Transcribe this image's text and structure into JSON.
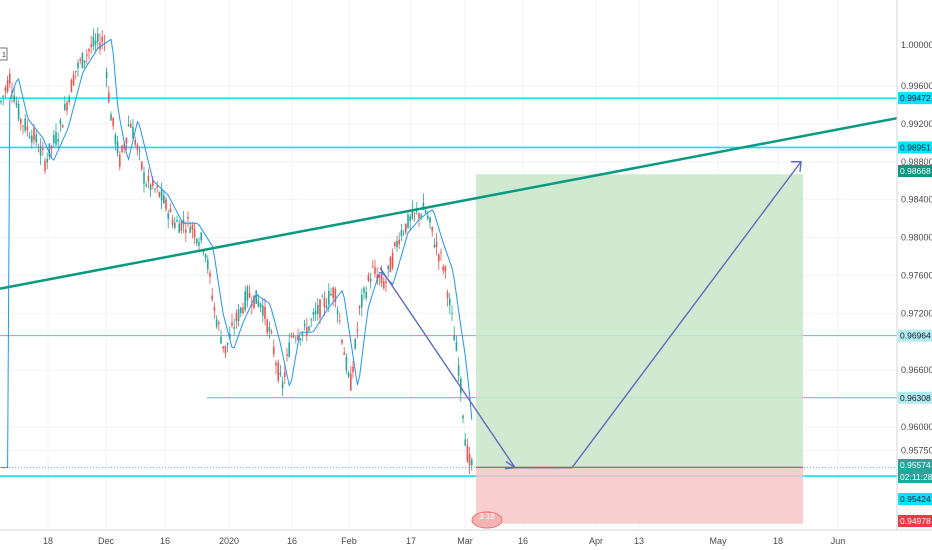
{
  "chart_data": {
    "type": "candlestick",
    "price_axis": {
      "ticks": [
        0.996,
        0.992,
        0.988,
        0.984,
        0.98,
        0.976,
        0.972,
        0.966,
        0.96,
        0.9575
      ],
      "tick_labels": [
        "0.99600",
        "0.99200",
        "0.98800",
        "0.98400",
        "0.98000",
        "0.97600",
        "0.97200",
        "0.96600",
        "0.96000",
        "0.95750"
      ],
      "top_label": "1.00000"
    },
    "time_axis": {
      "labels": [
        "18",
        "Dec",
        "16",
        "2020",
        "16",
        "Feb",
        "17",
        "Mar",
        "16",
        "Apr",
        "13",
        "May",
        "18",
        "Jun"
      ]
    },
    "horizontal_levels": [
      {
        "value": 0.99472,
        "label": "0.99472",
        "color": "#00e5ff",
        "weight": "thick"
      },
      {
        "value": 0.98951,
        "label": "0.98951",
        "color": "#00e5ff",
        "weight": "thick"
      },
      {
        "value": 0.96964,
        "label": "0.96964",
        "color": "#4fc3c8",
        "weight": "thin"
      },
      {
        "value": 0.96308,
        "label": "0.96308",
        "color": "#4fc3c8",
        "weight": "thin"
      },
      {
        "value": 0.95481,
        "label": "0.95481",
        "color": "#00e5ff",
        "weight": "thick"
      }
    ],
    "badges": [
      {
        "label": "0.98668",
        "bg": "#089981"
      },
      {
        "label": "0.95574",
        "bg": "#26a69a"
      },
      {
        "label": "02:11:28",
        "bg": "#26a69a"
      },
      {
        "label": "0.95424",
        "bg": "#00e5ff",
        "dark_text": true
      },
      {
        "label": "0.94978",
        "bg": "#f23645"
      }
    ],
    "trendline": {
      "from": 0.9746,
      "to": 0.9926,
      "color": "#089981"
    },
    "position": {
      "type": "long",
      "target": 0.98668,
      "entry": 0.95574,
      "stop": 0.94978,
      "profit_color": "#c8e6c9",
      "loss_color": "#f8c6c6"
    },
    "projection_path_color": "#5c6bc0",
    "moving_average_color": "#2196f3",
    "up_color": "#26a69a",
    "down_color": "#ef5350",
    "events_marker": {
      "text": "3 18"
    },
    "corner_marker": "1"
  }
}
